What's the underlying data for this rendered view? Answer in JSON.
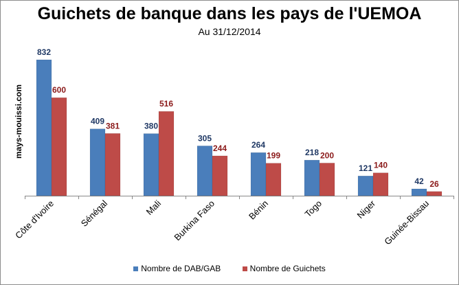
{
  "title": "Guichets de banque dans les pays de l'UEMOA",
  "subtitle": "Au 31/12/2014",
  "watermark": "mays-mouissi.com",
  "legend": [
    "Nombre de DAB/GAB",
    "Nombre de Guichets"
  ],
  "colors": {
    "dab": "#4a7ebb",
    "guichets": "#be4b48",
    "dab_label": "#1f3864",
    "guichets_label": "#8b1a1a"
  },
  "chart_data": {
    "type": "bar",
    "title": "Guichets de banque dans les pays de l'UEMOA",
    "subtitle": "Au 31/12/2014",
    "categories": [
      "Côte d'Ivoire",
      "Sénégal",
      "Mali",
      "Burkina Faso",
      "Bénin",
      "Togo",
      "Niger",
      "Guinée-Bissau"
    ],
    "series": [
      {
        "name": "Nombre de DAB/GAB",
        "values": [
          832,
          409,
          380,
          305,
          264,
          218,
          121,
          42
        ]
      },
      {
        "name": "Nombre de Guichets",
        "values": [
          600,
          381,
          516,
          244,
          199,
          200,
          140,
          26
        ]
      }
    ],
    "ylim": [
      0,
      832
    ],
    "legend_position": "bottom",
    "grid": false
  }
}
